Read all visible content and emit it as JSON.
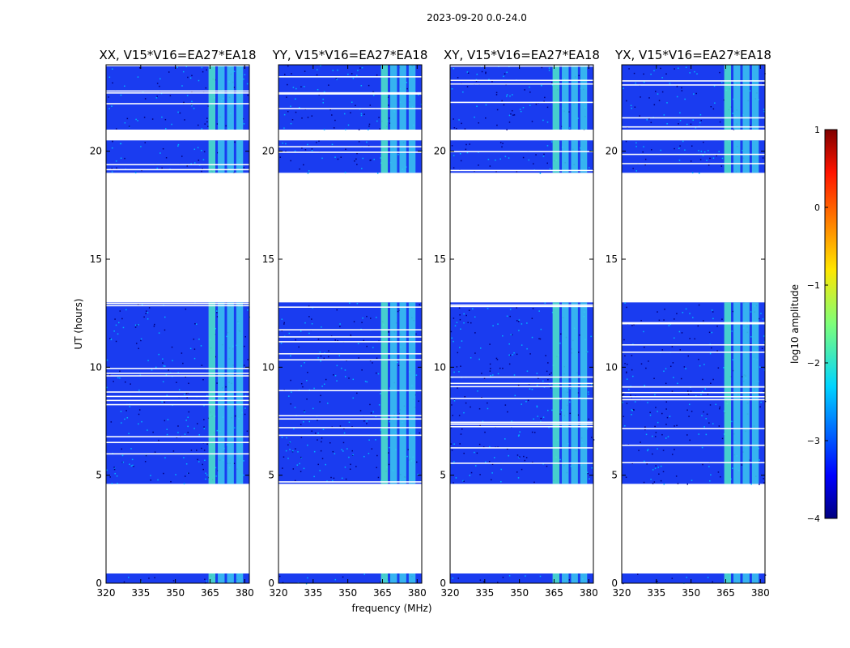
{
  "chart_data": {
    "type": "heatmap",
    "title": "2023-09-20 0.0-24.0",
    "xlabel": "frequency (MHz)",
    "ylabel": "UT (hours)",
    "xlim": [
      320,
      382
    ],
    "ylim": [
      0,
      24
    ],
    "x_ticks": [
      320,
      335,
      350,
      365,
      380
    ],
    "x_tick_labels": [
      "320",
      "335",
      "350",
      "365",
      "380"
    ],
    "y_ticks": [
      0,
      5,
      10,
      15,
      20
    ],
    "y_tick_labels": [
      "0",
      "5",
      "10",
      "15",
      "20"
    ],
    "panels": [
      {
        "title": "XX, V15*V16=EA27*EA18"
      },
      {
        "title": "YY, V15*V16=EA27*EA18"
      },
      {
        "title": "XY, V15*V16=EA27*EA18"
      },
      {
        "title": "YX, V15*V16=EA27*EA18"
      }
    ],
    "data_time_ranges_hours": [
      [
        0.0,
        0.45
      ],
      [
        4.6,
        13.0
      ],
      [
        19.0,
        20.5
      ],
      [
        21.0,
        24.0
      ]
    ],
    "bright_band_mhz": [
      364,
      380
    ],
    "colorbar": {
      "label": "log10 amplitude",
      "range": [
        -4,
        1
      ],
      "ticks": [
        1,
        0,
        -1,
        -2,
        -3,
        -4
      ],
      "tick_labels": [
        "1",
        "0",
        "−1",
        "−2",
        "−3",
        "−4"
      ]
    }
  }
}
